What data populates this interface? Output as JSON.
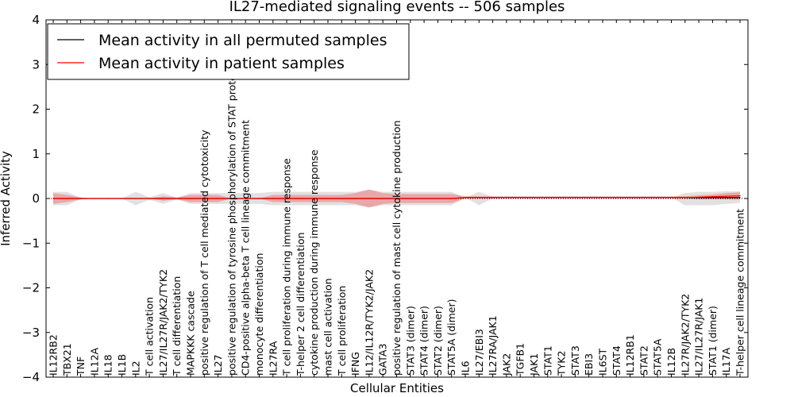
{
  "chart_data": {
    "type": "line",
    "title": "IL27-mediated signaling events -- 506 samples",
    "xlabel": "Cellular Entities",
    "ylabel": "Inferred Activity",
    "ylim": [
      -4,
      4
    ],
    "yticks": [
      -4,
      -3,
      -2,
      -1,
      0,
      1,
      2,
      3,
      4
    ],
    "legend_position": "top-left",
    "colors": {
      "permuted": "#000000",
      "patient": "#ff0000",
      "patient_band": "#f08080",
      "permuted_band": "#c8c8c8"
    },
    "categories": [
      "IL12RB2",
      "TBX21",
      "TNF",
      "IL12A",
      "IL18",
      "IL1B",
      "IL2",
      "T cell activation",
      "IL27/IL27R/JAK2/TYK2",
      "T cell differentiation",
      "MAPKKK cascade",
      "positive regulation of T cell mediated cytotoxicity",
      "IL27",
      "positive regulation of tyrosine phosphorylation of STAT protein",
      "CD4-positive alpha-beta T cell lineage commitment",
      "monocyte differentiation",
      "IL27RA",
      "T cell proliferation during immune response",
      "T-helper 2 cell differentiation",
      "cytokine production during immune response",
      "mast cell activation",
      "T cell proliferation",
      "IFNG",
      "IL12/IL12R/TYK2/JAK2",
      "GATA3",
      "positive regulation of mast cell cytokine production",
      "STAT3 (dimer)",
      "STAT4 (dimer)",
      "STAT2 (dimer)",
      "STAT5A (dimer)",
      "IL6",
      "IL27/EBI3",
      "IL27RA/JAK1",
      "JAK2",
      "TGFB1",
      "JAK1",
      "STAT1",
      "TYK2",
      "STAT3",
      "EBI3",
      "IL6ST",
      "STAT4",
      "IL12RB1",
      "STAT2",
      "STAT5A",
      "IL12B",
      "IL27R/JAK2/TYK2",
      "IL27/IL27R/JAK1",
      "STAT1 (dimer)",
      "IL17A",
      "T-helper cell lineage commitment"
    ],
    "series": [
      {
        "name": "Mean activity in all permuted samples",
        "values": [
          0.0,
          0.0,
          0.0,
          0.0,
          0.0,
          0.0,
          0.0,
          0.0,
          0.0,
          0.0,
          0.0,
          0.0,
          0.0,
          0.0,
          0.0,
          0.0,
          0.0,
          0.0,
          0.0,
          0.0,
          0.0,
          0.0,
          0.0,
          0.0,
          0.0,
          0.0,
          0.0,
          0.0,
          0.0,
          0.0,
          0.02,
          0.02,
          0.02,
          0.02,
          0.02,
          0.02,
          0.02,
          0.02,
          0.02,
          0.02,
          0.02,
          0.02,
          0.02,
          0.02,
          0.02,
          0.02,
          0.02,
          0.02,
          0.02,
          0.02,
          0.02
        ],
        "lower": [
          -0.15,
          -0.15,
          -0.02,
          0.0,
          0.0,
          0.0,
          -0.15,
          -0.03,
          -0.12,
          -0.02,
          -0.12,
          -0.12,
          -0.12,
          -0.12,
          -0.12,
          -0.12,
          -0.15,
          -0.15,
          -0.15,
          -0.15,
          -0.15,
          -0.15,
          -0.15,
          -0.2,
          -0.15,
          -0.15,
          -0.15,
          -0.15,
          -0.15,
          -0.15,
          0.02,
          -0.15,
          0.0,
          0.02,
          0.02,
          0.02,
          0.02,
          0.02,
          0.02,
          0.02,
          0.02,
          0.02,
          0.02,
          0.02,
          0.02,
          0.02,
          -0.15,
          -0.15,
          -0.15,
          -0.12,
          -0.1
        ],
        "upper": [
          0.15,
          0.15,
          0.02,
          0.0,
          0.0,
          0.0,
          0.15,
          0.03,
          0.12,
          0.02,
          0.12,
          0.12,
          0.12,
          0.12,
          0.12,
          0.12,
          0.15,
          0.15,
          0.15,
          0.15,
          0.15,
          0.15,
          0.15,
          0.2,
          0.15,
          0.15,
          0.15,
          0.15,
          0.15,
          0.15,
          0.02,
          0.15,
          0.04,
          0.02,
          0.02,
          0.02,
          0.02,
          0.02,
          0.02,
          0.02,
          0.02,
          0.02,
          0.02,
          0.02,
          0.02,
          0.02,
          0.12,
          0.15,
          0.15,
          0.16,
          0.16
        ]
      },
      {
        "name": "Mean activity in patient samples",
        "values": [
          0.0,
          0.0,
          0.0,
          0.0,
          0.0,
          0.0,
          0.0,
          0.0,
          0.0,
          0.0,
          0.0,
          0.0,
          0.0,
          0.0,
          0.0,
          0.0,
          0.0,
          0.0,
          0.0,
          0.0,
          0.0,
          0.0,
          0.0,
          0.0,
          0.0,
          0.0,
          0.0,
          0.0,
          0.0,
          0.0,
          0.02,
          0.02,
          0.02,
          0.02,
          0.02,
          0.02,
          0.02,
          0.02,
          0.02,
          0.02,
          0.02,
          0.02,
          0.02,
          0.02,
          0.02,
          0.02,
          0.02,
          0.03,
          0.04,
          0.05,
          0.06
        ],
        "lower": [
          -0.12,
          -0.08,
          -0.02,
          0.0,
          0.0,
          0.0,
          0.0,
          0.0,
          -0.05,
          -0.02,
          -0.08,
          -0.08,
          -0.08,
          0.0,
          0.0,
          0.0,
          -0.08,
          -0.08,
          -0.08,
          -0.08,
          -0.08,
          -0.08,
          -0.12,
          -0.2,
          -0.12,
          -0.1,
          -0.1,
          -0.1,
          -0.1,
          -0.1,
          0.0,
          0.0,
          0.0,
          0.0,
          0.0,
          0.0,
          0.0,
          0.0,
          0.0,
          0.0,
          0.0,
          0.0,
          0.0,
          0.0,
          0.0,
          0.0,
          0.0,
          -0.02,
          -0.02,
          -0.02,
          -0.02
        ],
        "upper": [
          0.12,
          0.08,
          0.02,
          0.0,
          0.0,
          0.0,
          0.0,
          0.0,
          0.05,
          0.02,
          0.08,
          0.08,
          0.08,
          0.0,
          0.0,
          0.0,
          0.08,
          0.08,
          0.08,
          0.08,
          0.08,
          0.08,
          0.12,
          0.2,
          0.12,
          0.1,
          0.1,
          0.1,
          0.1,
          0.1,
          0.05,
          0.05,
          0.05,
          0.05,
          0.05,
          0.05,
          0.05,
          0.05,
          0.05,
          0.05,
          0.05,
          0.05,
          0.05,
          0.05,
          0.05,
          0.05,
          0.05,
          0.07,
          0.09,
          0.12,
          0.14
        ]
      }
    ]
  }
}
